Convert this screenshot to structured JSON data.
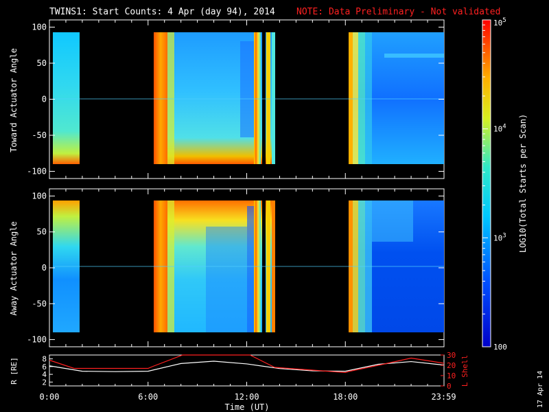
{
  "header": {
    "title": "TWINS1: Start Counts:  4 Apr (day  94), 2014",
    "note": "NOTE: Data Preliminary - Not validated"
  },
  "side_date": "17 Apr 14",
  "colorbar": {
    "label": "LOG10(Total Starts per Scan)",
    "ticks": [
      "10^5",
      "10^4",
      "10^3",
      "100"
    ]
  },
  "panels": [
    {
      "ylabel": "Toward Actuator Angle",
      "yticks": [
        "100",
        "50",
        "0",
        "-50",
        "-100"
      ]
    },
    {
      "ylabel": "Away Actuator Angle",
      "yticks": [
        "100",
        "50",
        "0",
        "-50",
        "-100"
      ]
    }
  ],
  "bottom_panel": {
    "ylabel_left": "R [RE]",
    "ylabel_right": "L Shell",
    "left_ticks": [
      "8",
      "6",
      "4",
      "2"
    ],
    "right_ticks": [
      "30",
      "20",
      "10",
      "0"
    ]
  },
  "x_axis": {
    "label": "Time (UT)",
    "ticks": [
      "0:00",
      "6:00",
      "12:00",
      "18:00",
      "23:59"
    ]
  },
  "colors": {
    "note": "#ff2020",
    "lshell": "#ff2020",
    "r_line": "#ffffff",
    "background": "#000000"
  },
  "chart_data": [
    {
      "type": "heatmap",
      "title": "TWINS1: Start Counts:  4 Apr (day  94), 2014",
      "ylabel": "Toward Actuator Angle",
      "xlabel": "Time (UT)",
      "xlim": [
        0,
        24
      ],
      "ylim": [
        -110,
        110
      ],
      "zlabel": "LOG10(Total Starts per Scan)",
      "zlim": [
        100,
        100000
      ],
      "zscale": "log",
      "data_intervals_hours": [
        [
          0.1,
          1.5
        ],
        [
          6.1,
          13.2
        ],
        [
          17.9,
          23.95
        ]
      ]
    },
    {
      "type": "heatmap",
      "ylabel": "Away Actuator Angle",
      "xlabel": "Time (UT)",
      "xlim": [
        0,
        24
      ],
      "ylim": [
        -110,
        110
      ],
      "zlabel": "LOG10(Total Starts per Scan)",
      "zlim": [
        100,
        100000
      ],
      "zscale": "log",
      "data_intervals_hours": [
        [
          0.1,
          1.5
        ],
        [
          6.1,
          13.2
        ],
        [
          17.9,
          23.95
        ]
      ]
    },
    {
      "type": "line",
      "xlabel": "Time (UT)",
      "xlim": [
        0,
        24
      ],
      "series": [
        {
          "name": "R [RE]",
          "axis": "left",
          "ylim": [
            1,
            9
          ],
          "x": [
            0,
            2,
            4,
            6,
            8,
            10,
            12,
            14,
            16,
            18,
            20,
            22,
            24
          ],
          "values": [
            6.2,
            4.8,
            4.7,
            4.8,
            6.8,
            7.4,
            6.7,
            5.5,
            4.9,
            4.8,
            6.6,
            7.3,
            6.4
          ]
        },
        {
          "name": "L Shell",
          "axis": "right",
          "ylim": [
            0,
            30
          ],
          "x": [
            0,
            1.5,
            6,
            6.3,
            8.1,
            12.2,
            13.7,
            18,
            18.2,
            20,
            22,
            24
          ],
          "values": [
            25,
            17,
            17,
            19,
            30,
            30,
            18,
            13,
            14,
            20,
            27,
            22
          ]
        }
      ]
    }
  ]
}
